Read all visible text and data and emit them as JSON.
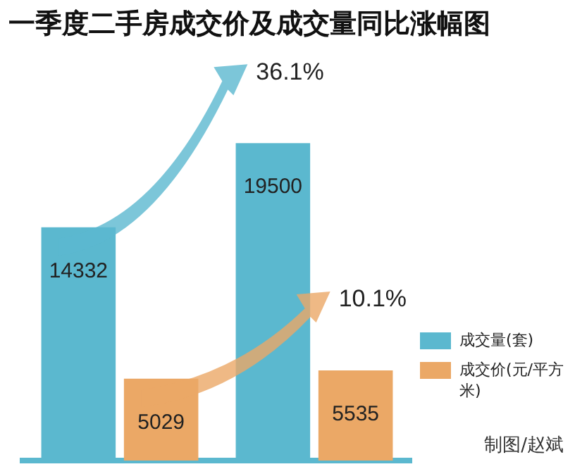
{
  "chart_data": {
    "type": "bar",
    "title": "一季度二手房成交价及成交量同比涨幅图",
    "categories": [
      null,
      null
    ],
    "series": [
      {
        "name": "成交量(套)",
        "color": "#5bb8cf",
        "values": [
          14332,
          19500
        ]
      },
      {
        "name": "成交价(元/平方米)",
        "color": "#eba866",
        "values": [
          5029,
          5535
        ]
      }
    ],
    "data_labels": true,
    "grid": false,
    "tick_labels": false,
    "legend": "bottom right",
    "annotations": [
      "36.1%",
      "10.1%",
      "制图/赵斌"
    ]
  }
}
